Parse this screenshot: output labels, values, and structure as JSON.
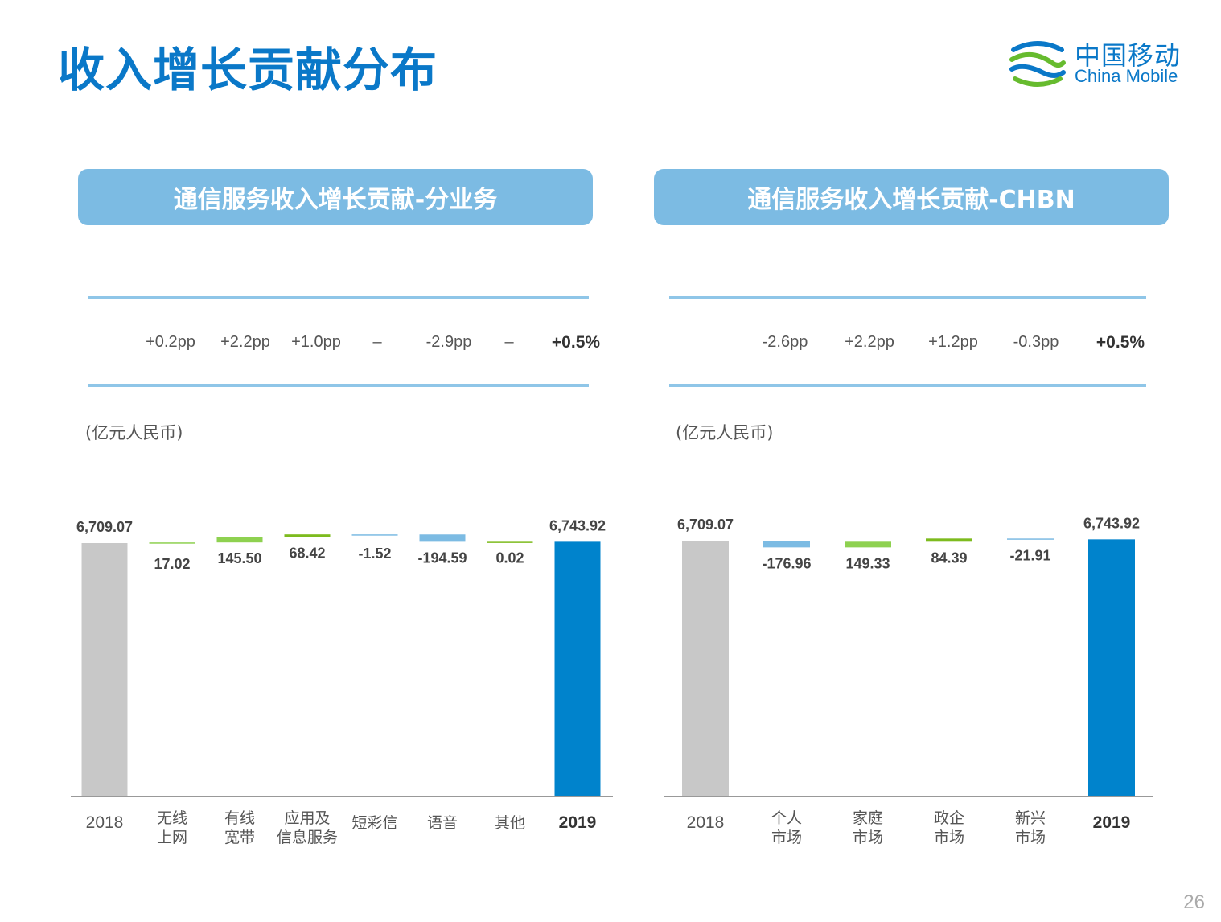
{
  "page": {
    "title": "收入增长贡献分布",
    "logo_cn": "中国移动",
    "logo_en": "China Mobile",
    "page_number": "26"
  },
  "colors": {
    "title": "#0a78c8",
    "header_bg": "#7cbbe3",
    "base_bar": "#c8c8c8",
    "final_bar": "#0083cc",
    "light_green": "#8ed150",
    "dark_green": "#7dbb1e",
    "light_blue": "#7cbbe3"
  },
  "left_panel": {
    "header": "通信服务收入增长贡献-分业务",
    "unit": "(亿元人民币)",
    "pp": [
      "+0.2pp",
      "+2.2pp",
      "+1.0pp",
      "–",
      "-2.9pp",
      "–",
      "+0.5%"
    ]
  },
  "right_panel": {
    "header": "通信服务收入增长贡献-CHBN",
    "unit": "(亿元人民币)",
    "pp": [
      "-2.6pp",
      "+2.2pp",
      "+1.2pp",
      "-0.3pp",
      "+0.5%"
    ]
  },
  "chart_data": [
    {
      "type": "bar",
      "subtype": "waterfall",
      "title": "通信服务收入增长贡献-分业务",
      "unit": "(亿元人民币)",
      "categories": [
        [
          "2018"
        ],
        [
          "无线",
          "上网"
        ],
        [
          "有线",
          "宽带"
        ],
        [
          "应用及",
          "信息服务"
        ],
        [
          "短彩信"
        ],
        [
          "语音"
        ],
        [
          "其他"
        ],
        [
          "2019"
        ]
      ],
      "values": [
        6709.07,
        17.02,
        145.5,
        68.42,
        -1.52,
        -194.59,
        0.02,
        6743.92
      ],
      "labels": [
        "6,709.07",
        "17.02",
        "145.50",
        "68.42",
        "-1.52",
        "-194.59",
        "0.02",
        "6,743.92"
      ],
      "kinds": [
        "base",
        "delta",
        "delta",
        "delta",
        "delta",
        "delta",
        "delta",
        "total"
      ],
      "bar_colors": [
        "#c8c8c8",
        "#8ed150",
        "#8ed150",
        "#7dbb1e",
        "#7cbbe3",
        "#7cbbe3",
        "#7dbb1e",
        "#0083cc"
      ]
    },
    {
      "type": "bar",
      "subtype": "waterfall",
      "title": "通信服务收入增长贡献-CHBN",
      "unit": "(亿元人民币)",
      "categories": [
        [
          "2018"
        ],
        [
          "个人",
          "市场"
        ],
        [
          "家庭",
          "市场"
        ],
        [
          "政企",
          "市场"
        ],
        [
          "新兴",
          "市场"
        ],
        [
          "2019"
        ]
      ],
      "values": [
        6709.07,
        -176.96,
        149.33,
        84.39,
        -21.91,
        6743.92
      ],
      "labels": [
        "6,709.07",
        "-176.96",
        "149.33",
        "84.39",
        "-21.91",
        "6,743.92"
      ],
      "kinds": [
        "base",
        "delta",
        "delta",
        "delta",
        "delta",
        "total"
      ],
      "bar_colors": [
        "#c8c8c8",
        "#7cbbe3",
        "#8ed150",
        "#7dbb1e",
        "#7cbbe3",
        "#0083cc"
      ]
    }
  ]
}
